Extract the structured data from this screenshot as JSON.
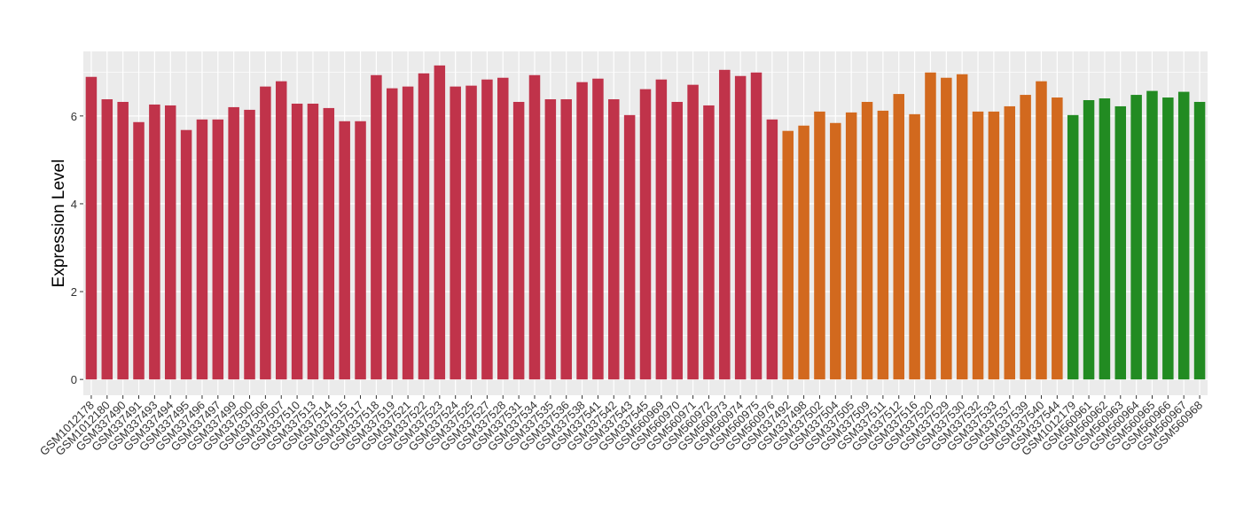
{
  "chart_data": {
    "type": "bar",
    "y_label": "Expression Level",
    "categories": [
      "GSM1012178",
      "GSM1012180",
      "GSM337490",
      "GSM337491",
      "GSM337493",
      "GSM337494",
      "GSM337495",
      "GSM337496",
      "GSM337497",
      "GSM337499",
      "GSM337500",
      "GSM337506",
      "GSM337507",
      "GSM337510",
      "GSM337513",
      "GSM337514",
      "GSM337515",
      "GSM337517",
      "GSM337518",
      "GSM337519",
      "GSM337521",
      "GSM337522",
      "GSM337523",
      "GSM337524",
      "GSM337525",
      "GSM337527",
      "GSM337528",
      "GSM337531",
      "GSM337534",
      "GSM337535",
      "GSM337536",
      "GSM337538",
      "GSM337541",
      "GSM337542",
      "GSM337543",
      "GSM337545",
      "GSM560969",
      "GSM560970",
      "GSM560971",
      "GSM560972",
      "GSM560973",
      "GSM560974",
      "GSM560975",
      "GSM560976",
      "GSM337492",
      "GSM337498",
      "GSM337502",
      "GSM337504",
      "GSM337505",
      "GSM337509",
      "GSM337511",
      "GSM337512",
      "GSM337516",
      "GSM337520",
      "GSM337529",
      "GSM337530",
      "GSM337532",
      "GSM337533",
      "GSM337537",
      "GSM337539",
      "GSM337540",
      "GSM337544",
      "GSM1012179",
      "GSM560961",
      "GSM560962",
      "GSM560963",
      "GSM560964",
      "GSM560965",
      "GSM560966",
      "GSM560967",
      "GSM560968"
    ],
    "values": [
      6.89,
      6.38,
      6.32,
      5.86,
      6.26,
      6.24,
      5.68,
      5.92,
      5.92,
      6.2,
      6.14,
      6.67,
      6.79,
      6.28,
      6.28,
      6.18,
      5.88,
      5.88,
      6.93,
      6.63,
      6.67,
      6.97,
      7.15,
      6.67,
      6.69,
      6.83,
      6.87,
      6.32,
      6.93,
      6.38,
      6.38,
      6.77,
      6.85,
      6.38,
      6.02,
      6.61,
      6.83,
      6.32,
      6.71,
      6.24,
      7.05,
      6.91,
      6.99,
      5.92,
      5.66,
      5.78,
      6.1,
      5.84,
      6.08,
      6.32,
      6.12,
      6.5,
      6.04,
      6.99,
      6.87,
      6.95,
      6.1,
      6.1,
      6.22,
      6.48,
      6.79,
      6.42,
      6.02,
      6.36,
      6.4,
      6.22,
      6.48,
      6.57,
      6.42,
      6.55,
      6.32
    ],
    "colors": [
      "#c0334a",
      "#c0334a",
      "#c0334a",
      "#c0334a",
      "#c0334a",
      "#c0334a",
      "#c0334a",
      "#c0334a",
      "#c0334a",
      "#c0334a",
      "#c0334a",
      "#c0334a",
      "#c0334a",
      "#c0334a",
      "#c0334a",
      "#c0334a",
      "#c0334a",
      "#c0334a",
      "#c0334a",
      "#c0334a",
      "#c0334a",
      "#c0334a",
      "#c0334a",
      "#c0334a",
      "#c0334a",
      "#c0334a",
      "#c0334a",
      "#c0334a",
      "#c0334a",
      "#c0334a",
      "#c0334a",
      "#c0334a",
      "#c0334a",
      "#c0334a",
      "#c0334a",
      "#c0334a",
      "#c0334a",
      "#c0334a",
      "#c0334a",
      "#c0334a",
      "#c0334a",
      "#c0334a",
      "#c0334a",
      "#c0334a",
      "#d2691e",
      "#d2691e",
      "#d2691e",
      "#d2691e",
      "#d2691e",
      "#d2691e",
      "#d2691e",
      "#d2691e",
      "#d2691e",
      "#d2691e",
      "#d2691e",
      "#d2691e",
      "#d2691e",
      "#d2691e",
      "#d2691e",
      "#d2691e",
      "#d2691e",
      "#d2691e",
      "#228b22",
      "#228b22",
      "#228b22",
      "#228b22",
      "#228b22",
      "#228b22",
      "#228b22",
      "#228b22",
      "#228b22"
    ],
    "ylim": [
      -0.36,
      7.47
    ],
    "yticks": [
      0,
      2,
      4,
      6
    ],
    "minor_grid": [
      1,
      3,
      5,
      7
    ],
    "grid": true
  }
}
